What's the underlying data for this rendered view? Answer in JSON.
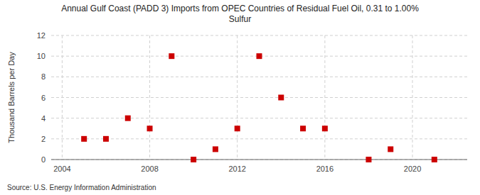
{
  "chart_data": {
    "type": "scatter",
    "title": "Annual Gulf Coast (PADD 3) Imports from OPEC Countries of Residual Fuel Oil, 0.31 to 1.00%\nSulfur",
    "ylabel": "Thousand Barrels per Day",
    "source": "Source: U.S. Energy Information Administration",
    "x": [
      2005,
      2006,
      2007,
      2008,
      2009,
      2010,
      2011,
      2012,
      2013,
      2014,
      2015,
      2016,
      2018,
      2019,
      2021
    ],
    "values": [
      2,
      2,
      4,
      3,
      10,
      0,
      1,
      3,
      10,
      6,
      3,
      3,
      0,
      1,
      0
    ],
    "color": "#cc0000",
    "marker": "square",
    "xlim": [
      2003.5,
      2022.5
    ],
    "xticks": [
      2004,
      2008,
      2012,
      2016,
      2020
    ],
    "ylim": [
      0,
      12
    ],
    "yticks": [
      0,
      2,
      4,
      6,
      8,
      10,
      12
    ],
    "grid": true
  }
}
